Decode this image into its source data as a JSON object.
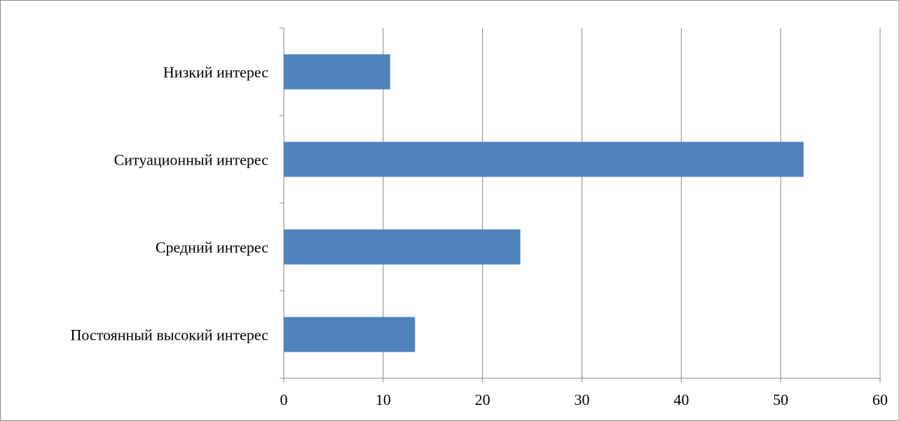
{
  "chart_data": {
    "type": "bar",
    "orientation": "horizontal",
    "categories": [
      "Постоянный высокий интерес",
      "Средний интерес",
      "Ситуационный интерес",
      "Низкий интерес"
    ],
    "values": [
      13.2,
      23.8,
      52.3,
      10.7
    ],
    "title": "",
    "xlabel": "",
    "ylabel": "",
    "xlim": [
      0,
      60
    ],
    "xticks": [
      "0",
      "10",
      "20",
      "30",
      "40",
      "50",
      "60"
    ],
    "grid": true,
    "legend": "none",
    "bar_color": "#4f81bd",
    "grid_color": "#868686",
    "axis_color": "#868686"
  }
}
